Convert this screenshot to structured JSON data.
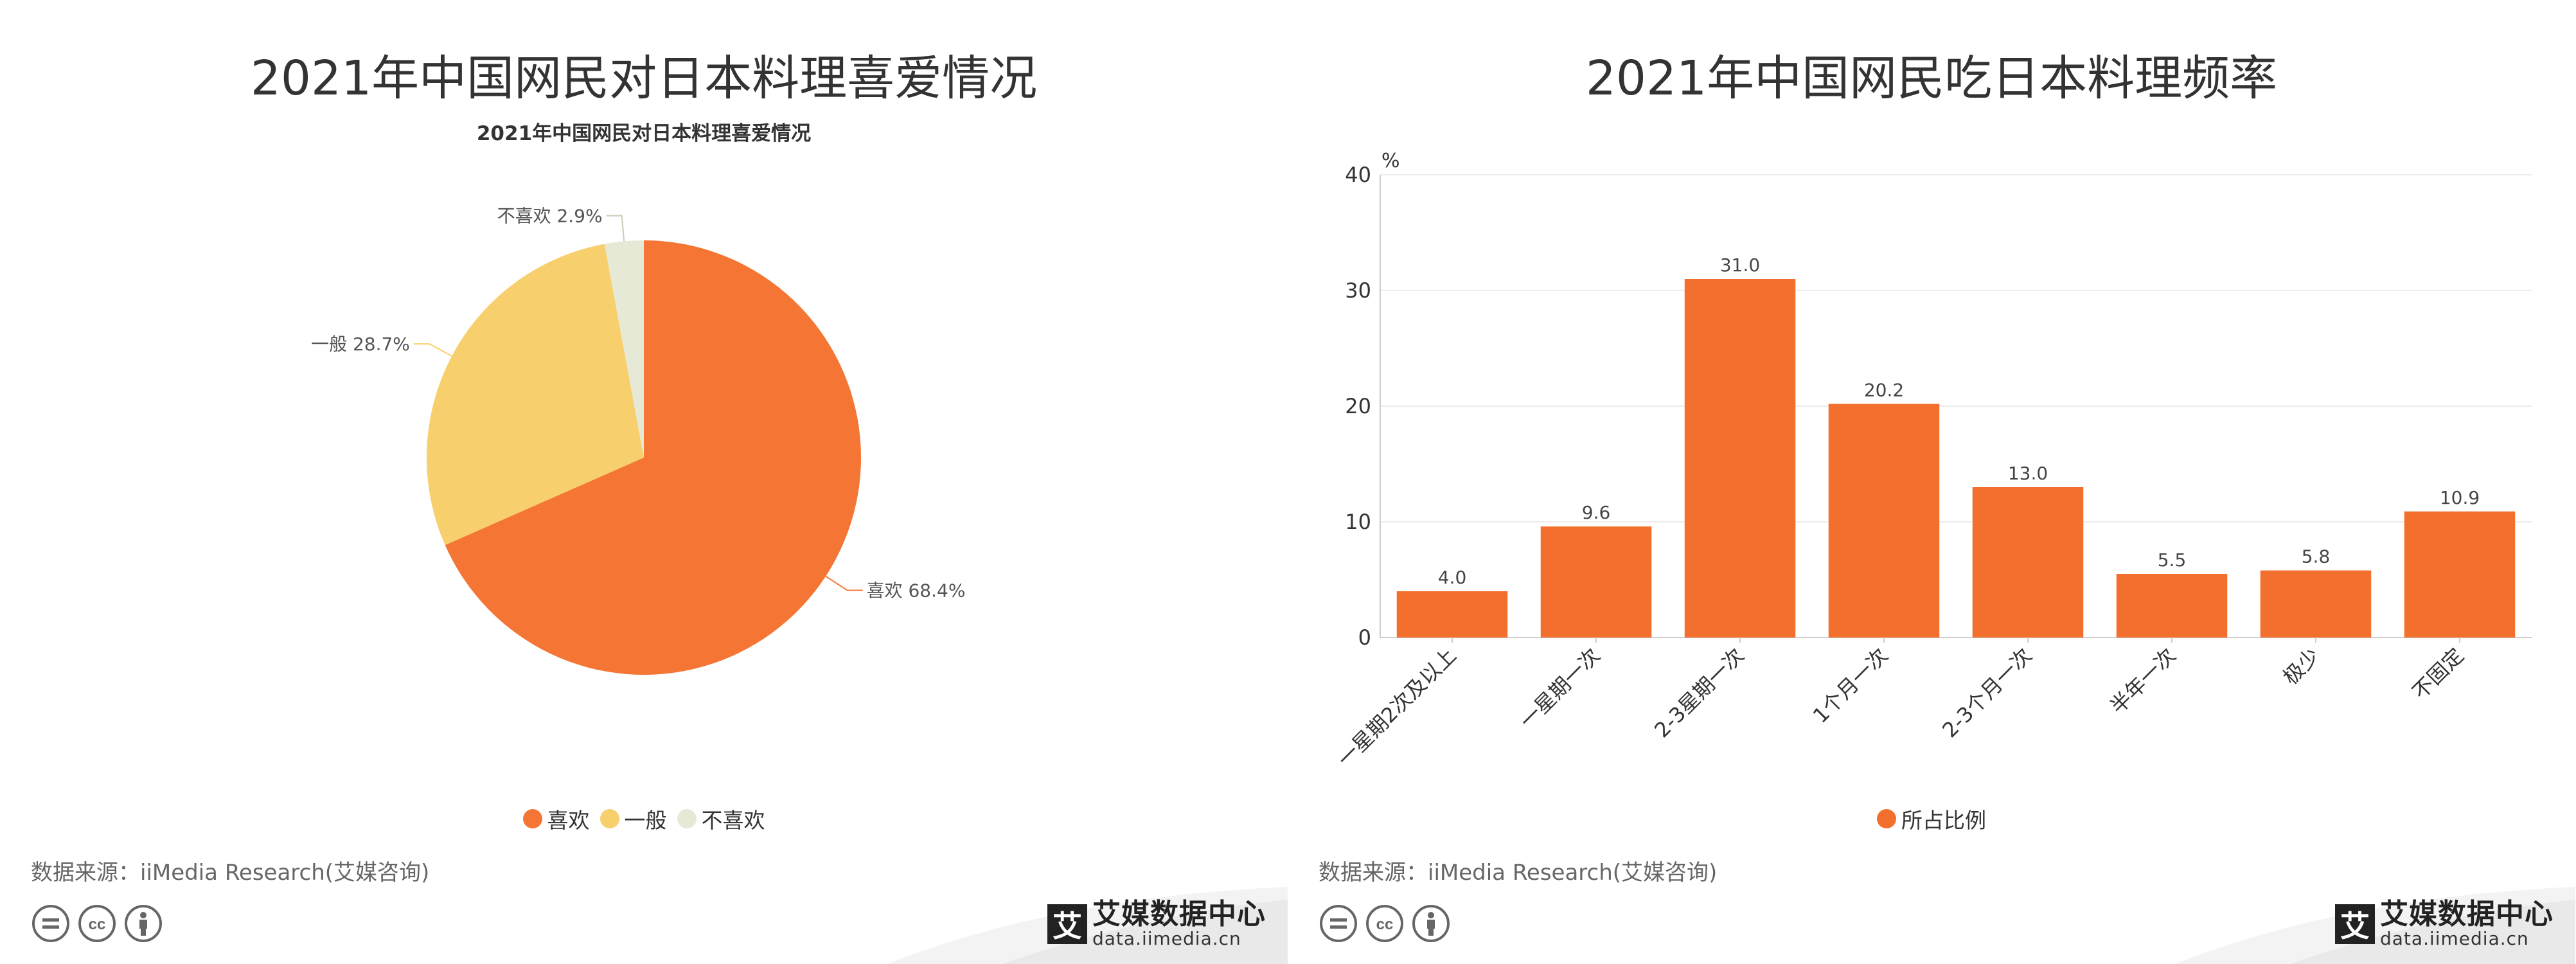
{
  "left": {
    "title": "2021年中国网民对日本料理喜爱情况",
    "legend": [
      "喜欢",
      "一般",
      "不喜欢"
    ],
    "source": "数据来源：iiMedia Research(艾媒咨询)"
  },
  "right": {
    "title": "2021年中国网民吃日本料理频率",
    "legend": [
      "所占比例"
    ],
    "source": "数据来源：iiMedia Research(艾媒咨询)"
  },
  "brand": {
    "name": "艾媒数据中心",
    "url": "data.iimedia.cn",
    "mark": "艾"
  },
  "chart_data": [
    {
      "type": "pie",
      "title": "2021年中国网民对日本料理喜爱情况",
      "categories": [
        "喜欢",
        "一般",
        "不喜欢"
      ],
      "values": [
        68.4,
        28.7,
        2.9
      ],
      "data_labels": [
        "喜欢 68.4%",
        "一般 28.7%",
        "不喜欢 2.9%"
      ],
      "colors": [
        "#f47534",
        "#f7cf6d",
        "#e6e9d6"
      ],
      "legend_position": "bottom"
    },
    {
      "type": "bar",
      "title": "2021年中国网民吃日本料理频率",
      "categories": [
        "一星期2次及以上",
        "一星期一次",
        "2-3星期一次",
        "1个月一次",
        "2-3个月一次",
        "半年一次",
        "极少",
        "不固定"
      ],
      "series": [
        {
          "name": "所占比例",
          "values": [
            4.0,
            9.6,
            31.0,
            20.2,
            13.0,
            5.5,
            5.8,
            10.9
          ],
          "color": "#f36f2d"
        }
      ],
      "ylabel": "%",
      "ylim": [
        0,
        40
      ],
      "yticks": [
        0,
        10,
        20,
        30,
        40
      ],
      "grid": true,
      "legend_position": "bottom"
    }
  ]
}
